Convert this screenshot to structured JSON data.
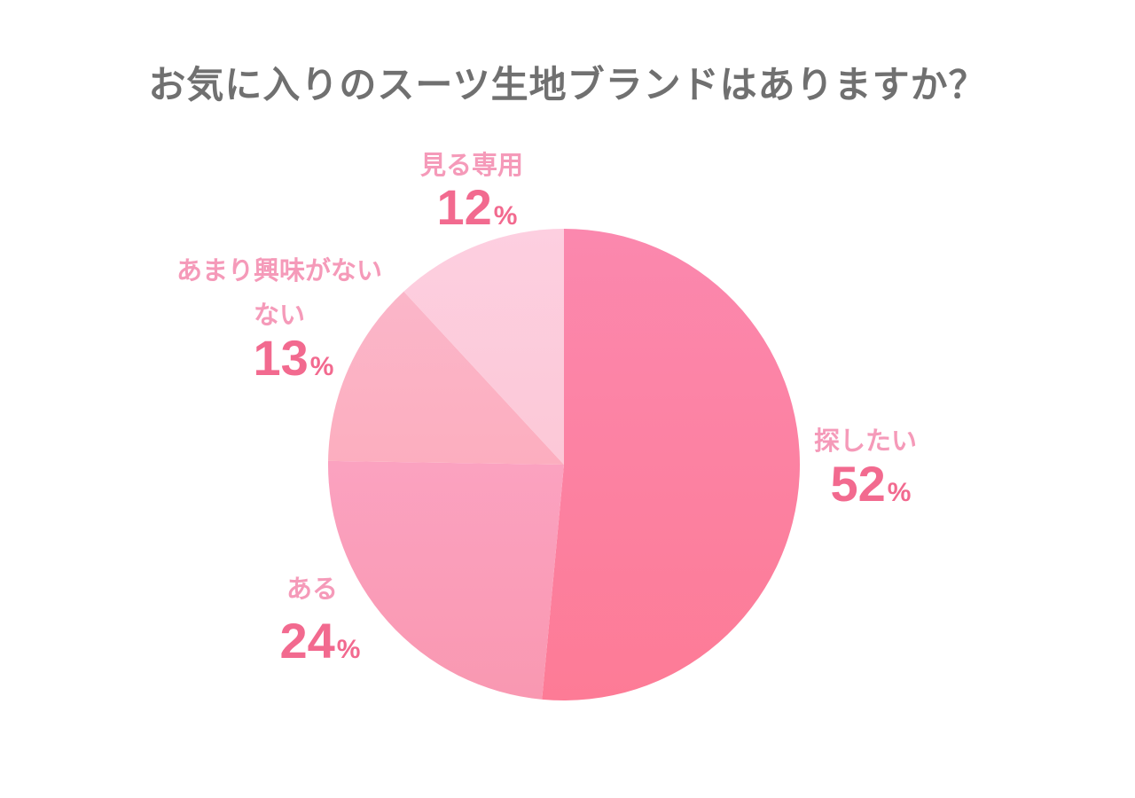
{
  "chart_data": {
    "type": "pie",
    "title": "お気に入りのスーツ生地ブランドはありますか？",
    "unit": "%",
    "start": "top",
    "direction": "clockwise",
    "slices": [
      {
        "label_lines": [
          "探したい"
        ],
        "value": 52,
        "gradient": [
          "#fb88ae",
          "#fd7b96"
        ]
      },
      {
        "label_lines": [
          "ある"
        ],
        "value": 24,
        "gradient": [
          "#fba2c0",
          "#f998b1"
        ]
      },
      {
        "label_lines": [
          "あまり興味がない",
          "ない"
        ],
        "value": 13,
        "gradient": [
          "#fbb6c9",
          "#fcaebf"
        ]
      },
      {
        "label_lines": [
          "見る専用"
        ],
        "value": 12,
        "gradient": [
          "#fdcfe0",
          "#fcc8d7"
        ]
      }
    ]
  },
  "style": {
    "title_color": "#707070",
    "label_color": "#f59ab9",
    "value_color": "#f26a8f"
  }
}
